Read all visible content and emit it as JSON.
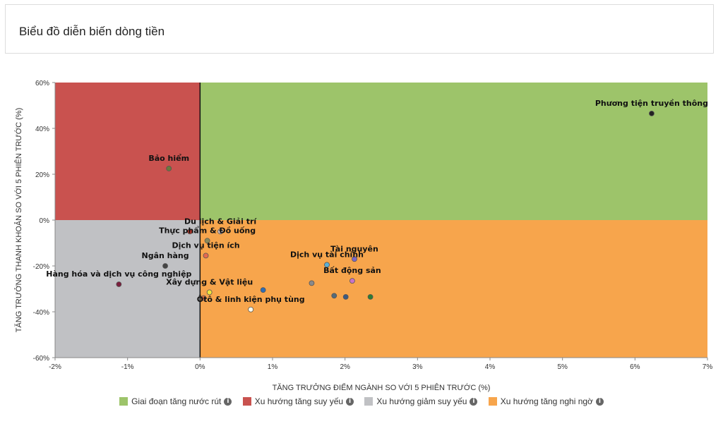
{
  "header": {
    "title": "Biểu đồ diễn biến dòng tiền"
  },
  "chart_data": {
    "type": "scatter",
    "xlabel": "TĂNG TRƯỞNG ĐIỂM NGÀNH SO VỚI 5 PHIÊN TRƯỚC (%)",
    "ylabel": "TĂNG TRƯỞNG THANH KHOẢN SO VỚI 5 PHIÊN TRƯỚC (%)",
    "xlim": [
      -2,
      7
    ],
    "ylim": [
      -60,
      60
    ],
    "x_ticks": [
      -2,
      -1,
      0,
      1,
      2,
      3,
      4,
      5,
      6,
      7
    ],
    "x_tick_labels": [
      "-2%",
      "-1%",
      "0%",
      "1%",
      "2%",
      "3%",
      "4%",
      "5%",
      "6%",
      "7%"
    ],
    "y_ticks": [
      -60,
      -40,
      -20,
      0,
      20,
      40,
      60
    ],
    "y_tick_labels": [
      "-60%",
      "-40%",
      "-20%",
      "0%",
      "20%",
      "40%",
      "60%"
    ],
    "quadrants": [
      {
        "name": "Giai đoạn tăng nước rút",
        "color": "#9dc46a"
      },
      {
        "name": "Xu hướng tăng suy yếu",
        "color": "#c9524f"
      },
      {
        "name": "Xu hướng giảm suy yếu",
        "color": "#c0c1c4"
      },
      {
        "name": "Xu hướng tăng nghi ngờ",
        "color": "#f7a54c"
      }
    ],
    "points": [
      {
        "label": "Phương tiện truyền thông",
        "x": 6.23,
        "y": 46.5,
        "color": "#222222"
      },
      {
        "label": "Bảo hiểm",
        "x": -0.43,
        "y": 22.5,
        "color": "#6b7a3c"
      },
      {
        "label": "Thực phẩm & Đồ uống",
        "x": 0.1,
        "y": -9.0,
        "color": "#8a8a5a"
      },
      {
        "label": "Du lịch & Giải trí",
        "x": 0.28,
        "y": -5.0,
        "color": "#d9c7c7"
      },
      {
        "label": "",
        "x": -0.14,
        "y": -5.0,
        "color": "#c0392b"
      },
      {
        "label": "Dịch vụ tiện ích",
        "x": 0.08,
        "y": -15.5,
        "color": "#e56a4f"
      },
      {
        "label": "Ngân hàng",
        "x": -0.48,
        "y": -20.0,
        "color": "#444444"
      },
      {
        "label": "Hàng hóa và dịch vụ công nghiệp",
        "x": -1.12,
        "y": -28.0,
        "color": "#7a1f3d"
      },
      {
        "label": "Xây dựng & Vật liệu",
        "x": 0.13,
        "y": -31.5,
        "color": "#f2e33b"
      },
      {
        "label": "",
        "x": 0.05,
        "y": -34.0,
        "color": "#d96c3f"
      },
      {
        "label": "",
        "x": 0.87,
        "y": -30.5,
        "color": "#2f6db3"
      },
      {
        "label": "Ôtô & linh kiện phụ tùng",
        "x": 0.7,
        "y": -39.0,
        "color": "#ffffee"
      },
      {
        "label": "Tài nguyên",
        "x": 2.13,
        "y": -17.0,
        "color": "#7b68c9"
      },
      {
        "label": "Dịch vụ tài chính",
        "x": 1.75,
        "y": -19.5,
        "color": "#5ab0d6"
      },
      {
        "label": "Bất động sản",
        "x": 2.1,
        "y": -26.5,
        "color": "#c774c7"
      },
      {
        "label": "",
        "x": 1.54,
        "y": -27.5,
        "color": "#8a8a8a"
      },
      {
        "label": "",
        "x": 1.85,
        "y": -33.0,
        "color": "#556b7a"
      },
      {
        "label": "",
        "x": 2.01,
        "y": -33.5,
        "color": "#3d5a80"
      },
      {
        "label": "",
        "x": 2.35,
        "y": -33.5,
        "color": "#2e7d32"
      }
    ]
  },
  "legend": [
    {
      "label": "Giai đoạn tăng nước rút",
      "color": "#9dc46a",
      "icon": "info-icon"
    },
    {
      "label": "Xu hướng tăng suy yếu",
      "color": "#c9524f",
      "icon": "info-icon"
    },
    {
      "label": "Xu hướng giảm suy yếu",
      "color": "#c0c1c4",
      "icon": "info-icon"
    },
    {
      "label": "Xu hướng tăng nghi ngờ",
      "color": "#f7a54c",
      "icon": "info-icon"
    }
  ],
  "info_glyph": "i"
}
